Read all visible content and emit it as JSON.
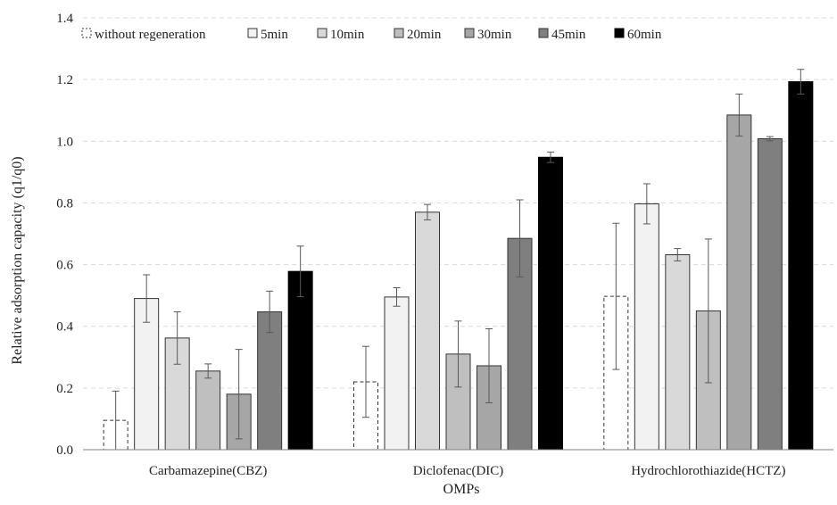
{
  "chart_data": {
    "type": "bar",
    "title": "",
    "xlabel": "OMPs",
    "ylabel": "Relative adsorption capacity (q1/q0)",
    "ylim": [
      0,
      1.4
    ],
    "yticks": [
      "0.0",
      "0.2",
      "0.4",
      "0.6",
      "0.8",
      "1.0",
      "1.2",
      "1.4"
    ],
    "grid": "horizontal-dashed",
    "legend_position": "top",
    "categories": [
      "Carbamazepine(CBZ)",
      "Diclofenac(DIC)",
      "Hydrochlorothiazide(HCTZ)"
    ],
    "series": [
      {
        "name": "without regeneration",
        "fill": "#ffffff",
        "stroke": "#333333",
        "dashed": true,
        "values": [
          0.095,
          0.22,
          0.497
        ],
        "errors": [
          0.095,
          0.115,
          0.237
        ]
      },
      {
        "name": "5min",
        "fill": "#f2f2f2",
        "stroke": "#333333",
        "dashed": false,
        "values": [
          0.49,
          0.495,
          0.797
        ],
        "errors": [
          0.077,
          0.03,
          0.065
        ]
      },
      {
        "name": "10min",
        "fill": "#d9d9d9",
        "stroke": "#333333",
        "dashed": false,
        "values": [
          0.362,
          0.77,
          0.632
        ],
        "errors": [
          0.085,
          0.025,
          0.02
        ]
      },
      {
        "name": "20min",
        "fill": "#bfbfbf",
        "stroke": "#333333",
        "dashed": false,
        "values": [
          0.255,
          0.31,
          0.45
        ],
        "errors": [
          0.023,
          0.107,
          0.233
        ]
      },
      {
        "name": "30min",
        "fill": "#a6a6a6",
        "stroke": "#333333",
        "dashed": false,
        "values": [
          0.18,
          0.272,
          1.085
        ],
        "errors": [
          0.145,
          0.12,
          0.068
        ]
      },
      {
        "name": "45min",
        "fill": "#7f7f7f",
        "stroke": "#333333",
        "dashed": false,
        "values": [
          0.447,
          0.685,
          1.008
        ],
        "errors": [
          0.067,
          0.125,
          0.007
        ]
      },
      {
        "name": "60min",
        "fill": "#000000",
        "stroke": "#000000",
        "dashed": false,
        "values": [
          0.578,
          0.948,
          1.193
        ],
        "errors": [
          0.082,
          0.017,
          0.04
        ]
      }
    ]
  }
}
